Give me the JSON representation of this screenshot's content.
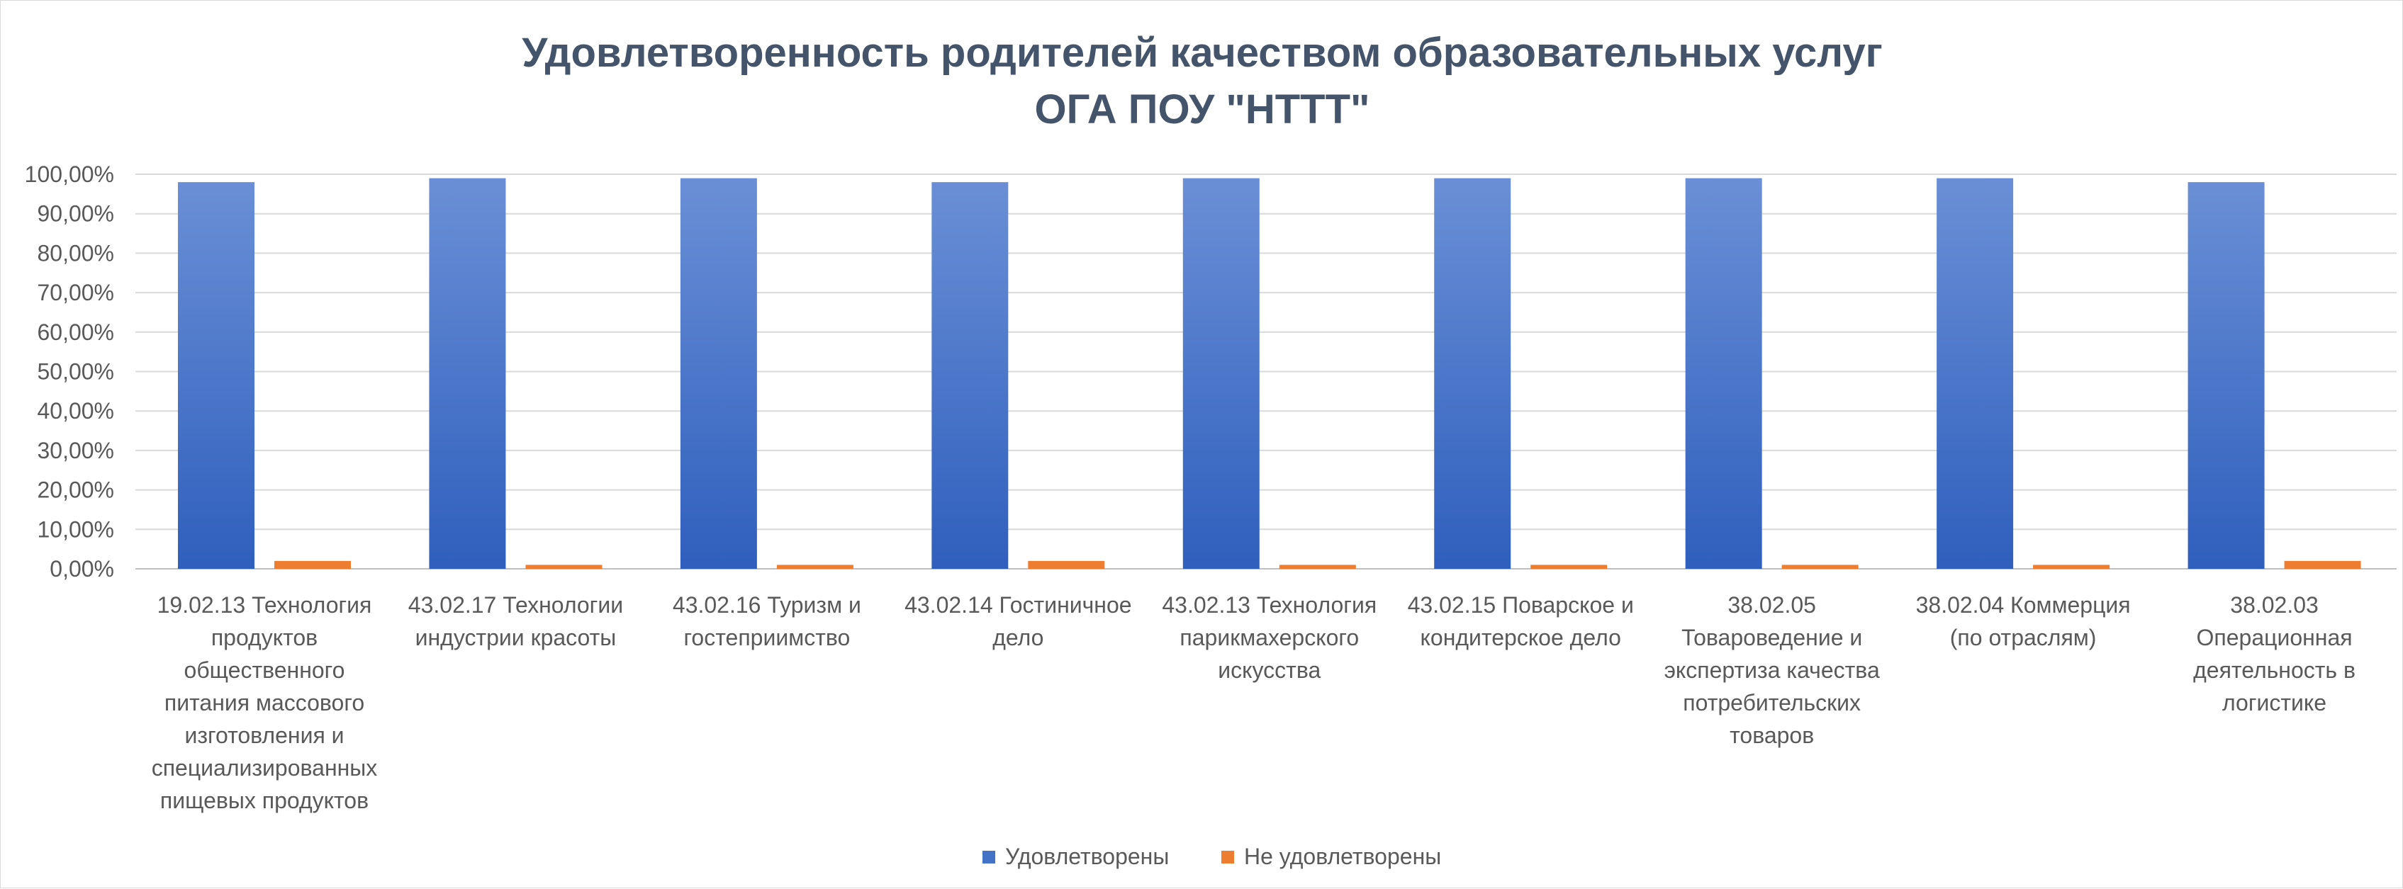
{
  "chart_data": {
    "type": "bar",
    "title": "Удовлетворенность родителей качеством образовательных услуг",
    "subtitle": "ОГА ПОУ \"НТТТ\"",
    "categories": [
      "19.02.13 Технология продуктов общественного питания массового изготовления и специализированных пищевых продуктов",
      "43.02.17 Технологии индустрии красоты",
      "43.02.16 Туризм и гостеприимство",
      "43.02.14 Гостиничное дело",
      "43.02.13 Технология парикмахерского искусства",
      "43.02.15 Поварское и кондитерское дело",
      "38.02.05 Товароведение и экспертиза качества потребительских товаров",
      "38.02.04 Коммерция (по отраслям)",
      "38.02.03 Операционная деятельность в логистике"
    ],
    "category_lines": [
      [
        "19.02.13 Технология",
        "продуктов",
        "общественного",
        "питания массового",
        "изготовления и",
        "специализированных",
        "пищевых продуктов"
      ],
      [
        "43.02.17 Технологии",
        "индустрии красоты"
      ],
      [
        "43.02.16 Туризм и",
        "гостеприимство"
      ],
      [
        "43.02.14 Гостиничное",
        "дело"
      ],
      [
        "43.02.13 Технология",
        "парикмахерского",
        "искусства"
      ],
      [
        "43.02.15 Поварское и",
        "кондитерское дело"
      ],
      [
        "38.02.05",
        "Товароведение и",
        "экспертиза качества",
        "потребительских",
        "товаров"
      ],
      [
        "38.02.04 Коммерция",
        "(по отраслям)"
      ],
      [
        "38.02.03",
        "Операционная",
        "деятельность в",
        "логистике"
      ]
    ],
    "series": [
      {
        "name": "Удовлетворены",
        "color": "#4472c4",
        "values": [
          98,
          99,
          99,
          98,
          99,
          99,
          99,
          99,
          98
        ]
      },
      {
        "name": "Не удовлетворены",
        "color": "#ed7d31",
        "values": [
          2,
          1,
          1,
          2,
          1,
          1,
          1,
          1,
          2
        ]
      }
    ],
    "yticks": [
      "0,00%",
      "10,00%",
      "20,00%",
      "30,00%",
      "40,00%",
      "50,00%",
      "60,00%",
      "70,00%",
      "80,00%",
      "90,00%",
      "100,00%"
    ],
    "ylim": [
      0,
      100
    ],
    "grid": true,
    "legend_position": "bottom",
    "xlabel": "",
    "ylabel": ""
  }
}
